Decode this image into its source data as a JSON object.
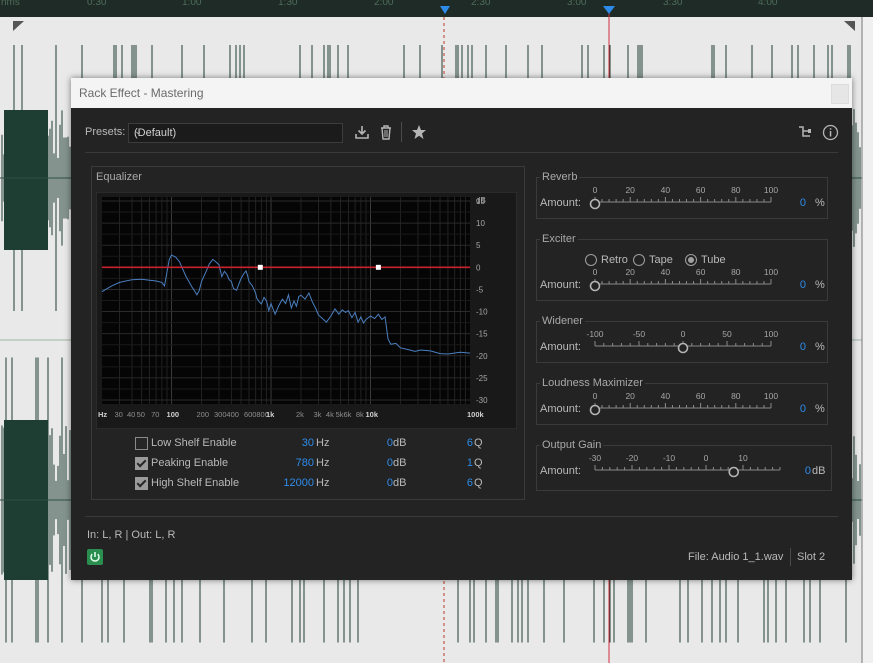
{
  "timeline": {
    "ruler_labels": [
      "hms",
      "0:30",
      "1:00",
      "1:30",
      "2:00",
      "2:30",
      "3:00",
      "3:30",
      "4:00"
    ]
  },
  "dialog": {
    "title": "Rack Effect - Mastering",
    "presets_label": "Presets:",
    "preset_value": "(Default)",
    "io_label": "In: L, R | Out: L, R",
    "file_label": "File: Audio 1_1.wav",
    "slot_label": "Slot 2"
  },
  "equalizer": {
    "title": "Equalizer",
    "db_labels": [
      "dB",
      "15",
      "10",
      "5",
      "0",
      "-5",
      "-10",
      "-15",
      "-20",
      "-25",
      "-30"
    ],
    "hz_labels": [
      "Hz",
      "30",
      "40",
      "50",
      "70",
      "100",
      "200",
      "300",
      "400",
      "600",
      "800",
      "1k",
      "2k",
      "3k",
      "4k",
      "5k",
      "6k",
      "8k",
      "10k",
      "100k"
    ],
    "bands": [
      {
        "name": "Low Shelf Enable",
        "enabled": false,
        "freq": "30",
        "freq_unit": "Hz",
        "gain": "0",
        "gain_unit": "dB",
        "q": "6",
        "q_unit": "Q"
      },
      {
        "name": "Peaking Enable",
        "enabled": true,
        "freq": "780",
        "freq_unit": "Hz",
        "gain": "0",
        "gain_unit": "dB",
        "q": "1",
        "q_unit": "Q"
      },
      {
        "name": "High Shelf Enable",
        "enabled": true,
        "freq": "12000",
        "freq_unit": "Hz",
        "gain": "0",
        "gain_unit": "dB",
        "q": "6",
        "q_unit": "Q"
      }
    ]
  },
  "reverb": {
    "title": "Reverb",
    "amount_label": "Amount:",
    "ticks": [
      "0",
      "20",
      "40",
      "60",
      "80",
      "100"
    ],
    "value": "0",
    "unit": "%",
    "level": 0
  },
  "exciter": {
    "title": "Exciter",
    "modes": [
      "Retro",
      "Tape",
      "Tube"
    ],
    "selected_mode": "Tube",
    "amount_label": "Amount:",
    "ticks": [
      "0",
      "20",
      "40",
      "60",
      "80",
      "100"
    ],
    "value": "0",
    "unit": "%",
    "level": 0
  },
  "widener": {
    "title": "Widener",
    "amount_label": "Amount:",
    "ticks": [
      "-100",
      "-50",
      "0",
      "50",
      "100"
    ],
    "value": "0",
    "unit": "%",
    "level": 0.5
  },
  "loudness": {
    "title": "Loudness Maximizer",
    "amount_label": "Amount:",
    "ticks": [
      "0",
      "20",
      "40",
      "60",
      "80",
      "100"
    ],
    "value": "0",
    "unit": "%",
    "level": 0
  },
  "output_gain": {
    "title": "Output Gain",
    "amount_label": "Amount:",
    "ticks": [
      "-30",
      "-20",
      "-10",
      "0",
      "10"
    ],
    "value": "0",
    "unit": "dB",
    "level": 0.75
  },
  "colors": {
    "accent": "#2d8ceb",
    "eq_line": "#c8232d",
    "spectrum": "#4a7fc1",
    "power": "#2a8f4e"
  }
}
